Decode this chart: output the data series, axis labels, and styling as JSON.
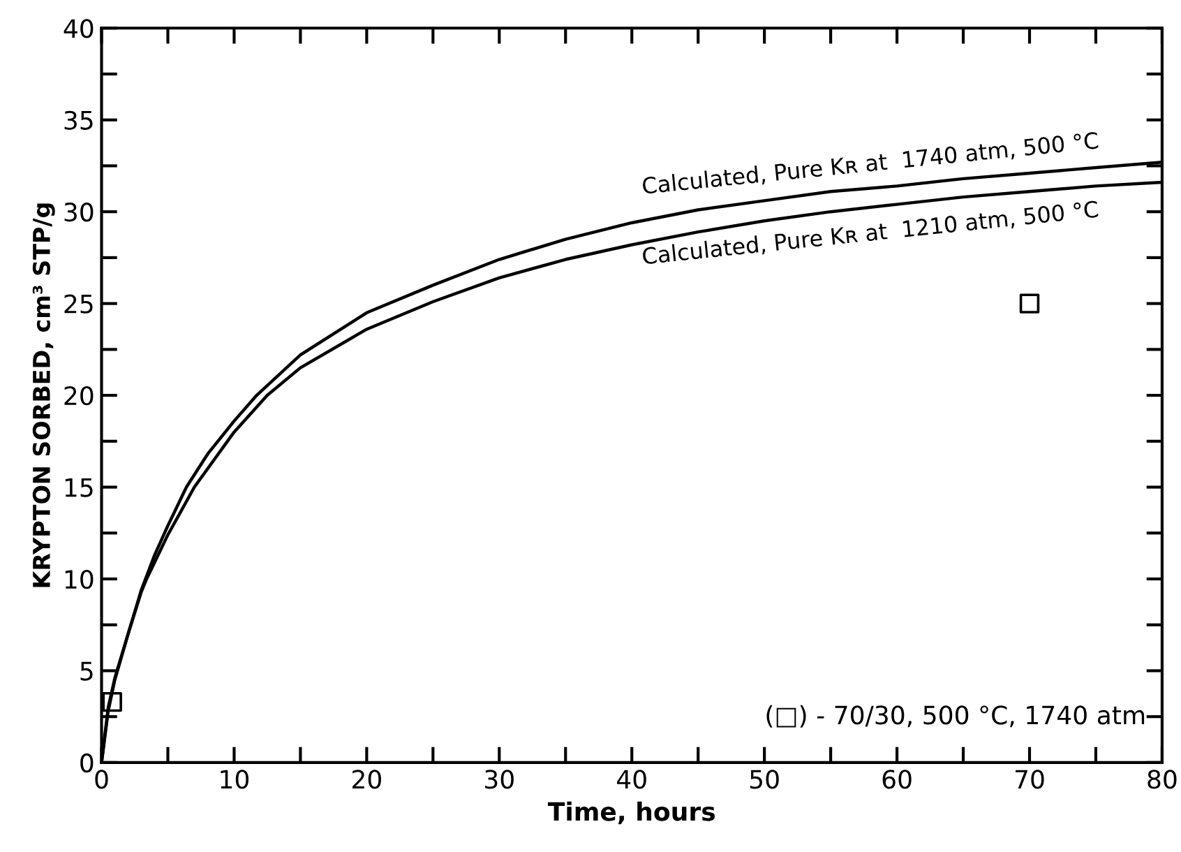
{
  "chart_data": {
    "type": "line",
    "xlabel": "Time, hours",
    "ylabel": "KRYPTON SORBED, cm³ STP/g",
    "xlim": [
      0,
      80
    ],
    "ylim": [
      0,
      40
    ],
    "xticks": [
      0,
      {
        "value": 5,
        "label": null
      },
      10,
      {
        "value": 15,
        "label": null
      },
      20,
      {
        "value": 25,
        "label": null
      },
      30,
      {
        "value": 35,
        "label": null
      },
      40,
      {
        "value": 45,
        "label": null
      },
      50,
      {
        "value": 55,
        "label": null
      },
      60,
      {
        "value": 65,
        "label": null
      },
      70,
      {
        "value": 75,
        "label": null
      },
      80
    ],
    "yticks": [
      0,
      {
        "value": 2.5,
        "label": null
      },
      5,
      {
        "value": 7.5,
        "label": null
      },
      10,
      {
        "value": 12.5,
        "label": null
      },
      15,
      {
        "value": 17.5,
        "label": null
      },
      20,
      {
        "value": 22.5,
        "label": null
      },
      25,
      {
        "value": 27.5,
        "label": null
      },
      30,
      {
        "value": 32.5,
        "label": null
      },
      35,
      {
        "value": 37.5,
        "label": null
      },
      40
    ],
    "grid": false,
    "annotations": [
      "(□) - 70/30, 500 °C, 1740 atm"
    ],
    "series": [
      {
        "name": "Calculated, Pure Kʀ at  1740 atm, 500 °C",
        "color": "#000000",
        "marker": "none",
        "line_style": "solid",
        "x": [
          0,
          0.5,
          1,
          2,
          3,
          4,
          5,
          6.4,
          8,
          10,
          11.7,
          15,
          20,
          25,
          30,
          35,
          40,
          45,
          50,
          55,
          60,
          65,
          70,
          75,
          80
        ],
        "values": [
          0,
          3,
          4.6,
          7,
          9.4,
          11.3,
          12.9,
          15,
          16.8,
          18.6,
          20,
          22.2,
          24.5,
          26,
          27.4,
          28.5,
          29.4,
          30.1,
          30.6,
          31.1,
          31.4,
          31.8,
          32.1,
          32.4,
          32.7
        ]
      },
      {
        "name": "Calculated, Pure Kʀ at  1210 atm, 500 °C",
        "color": "#000000",
        "marker": "none",
        "line_style": "solid",
        "x": [
          0,
          0.5,
          1,
          2,
          3,
          3.4,
          5,
          7,
          10,
          12.5,
          15,
          20,
          25,
          30,
          35,
          40,
          45,
          50,
          55,
          60,
          65,
          70,
          75,
          80
        ],
        "values": [
          0,
          2.8,
          4.5,
          7,
          9.3,
          10,
          12.4,
          15,
          18,
          20,
          21.5,
          23.6,
          25.1,
          26.4,
          27.4,
          28.2,
          28.9,
          29.5,
          30,
          30.4,
          30.8,
          31.1,
          31.4,
          31.6
        ]
      },
      {
        "type": "scatter",
        "color": "#000000",
        "marker": "square",
        "x": [
          0.8,
          70
        ],
        "values": [
          3.3,
          25
        ]
      }
    ]
  }
}
